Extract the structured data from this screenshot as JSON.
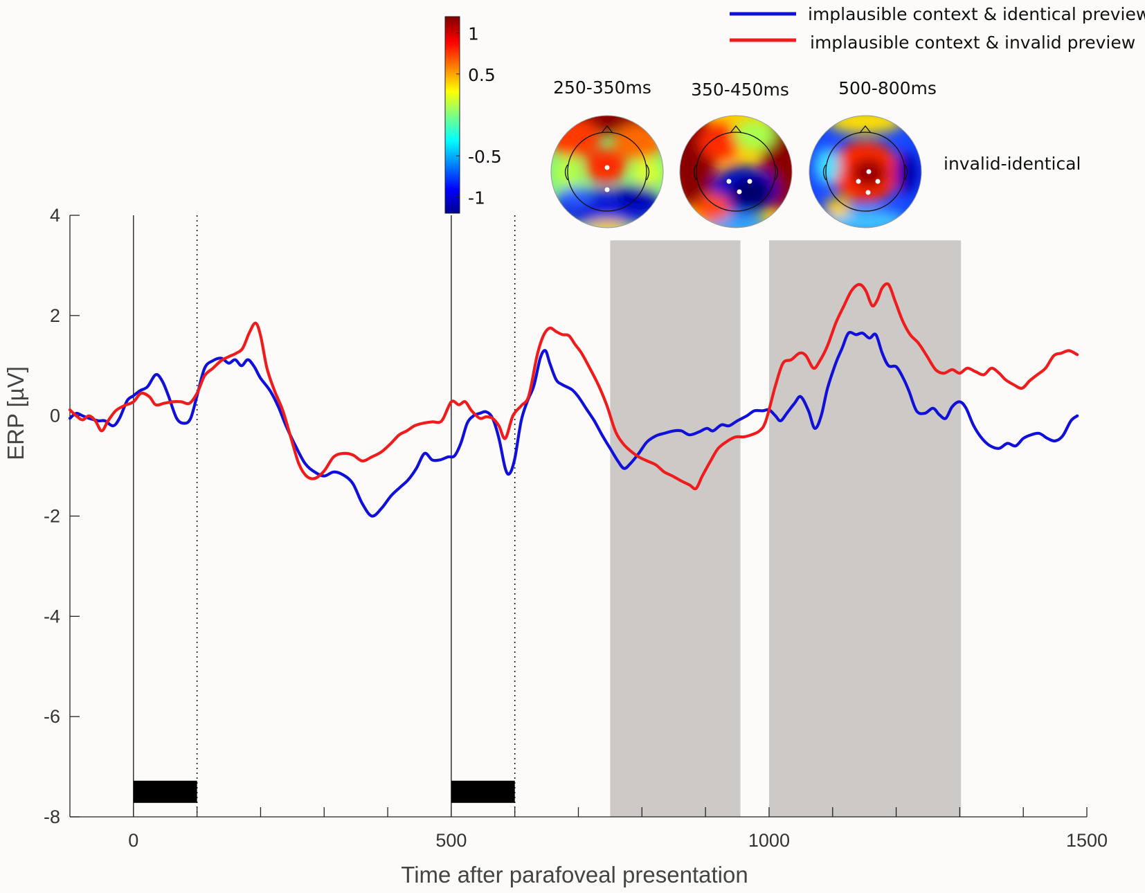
{
  "chart_data": {
    "type": "line",
    "title": "",
    "xlabel": "Time after parafoveal presentation",
    "ylabel": "ERP [µV]",
    "xlim": [
      -100,
      1500
    ],
    "ylim": [
      -8,
      4
    ],
    "x_ticks": [
      0,
      500,
      1000,
      1500
    ],
    "y_ticks": [
      -8,
      -6,
      -4,
      -2,
      0,
      2,
      4
    ],
    "x_tick_labels": [
      "0",
      "500",
      "1000",
      "1500"
    ],
    "y_tick_labels": [
      "-8",
      "-6",
      "-4",
      "-2",
      "0",
      "2",
      "4"
    ],
    "x_minor_ticks": [
      100,
      200,
      300,
      400,
      600,
      700,
      800,
      900,
      1100,
      1200,
      1300,
      1400
    ],
    "grid": false,
    "legend_position": "top-right",
    "shaded_regions": [
      [
        750,
        955
      ],
      [
        1000,
        1302
      ]
    ],
    "vertical_lines_solid": [
      0,
      500
    ],
    "vertical_lines_dotted": [
      100,
      600
    ],
    "stimulus_bars": [
      {
        "from": 0,
        "to": 100,
        "y": -7.5
      },
      {
        "from": 500,
        "to": 600,
        "y": -7.5
      }
    ],
    "series": [
      {
        "name": "implausible context & identical preview",
        "color": "#1010d8",
        "points": [
          [
            -100,
            -0.05
          ],
          [
            -90,
            0.05
          ],
          [
            -80,
            0.0
          ],
          [
            -70,
            -0.05
          ],
          [
            -55,
            -0.1
          ],
          [
            -45,
            -0.1
          ],
          [
            -32,
            -0.2
          ],
          [
            -22,
            -0.05
          ],
          [
            -10,
            0.3
          ],
          [
            0,
            0.4
          ],
          [
            10,
            0.5
          ],
          [
            22,
            0.58
          ],
          [
            35,
            0.82
          ],
          [
            45,
            0.7
          ],
          [
            55,
            0.4
          ],
          [
            68,
            -0.05
          ],
          [
            80,
            -0.15
          ],
          [
            90,
            -0.05
          ],
          [
            100,
            0.4
          ],
          [
            112,
            0.95
          ],
          [
            125,
            1.1
          ],
          [
            138,
            1.15
          ],
          [
            150,
            1.05
          ],
          [
            160,
            1.12
          ],
          [
            170,
            1.0
          ],
          [
            180,
            1.12
          ],
          [
            190,
            0.98
          ],
          [
            200,
            0.75
          ],
          [
            215,
            0.5
          ],
          [
            228,
            0.18
          ],
          [
            240,
            -0.2
          ],
          [
            255,
            -0.6
          ],
          [
            270,
            -0.95
          ],
          [
            285,
            -1.12
          ],
          [
            300,
            -1.2
          ],
          [
            315,
            -1.12
          ],
          [
            330,
            -1.18
          ],
          [
            345,
            -1.35
          ],
          [
            360,
            -1.75
          ],
          [
            375,
            -2.0
          ],
          [
            390,
            -1.85
          ],
          [
            405,
            -1.6
          ],
          [
            420,
            -1.42
          ],
          [
            432,
            -1.28
          ],
          [
            445,
            -1.05
          ],
          [
            458,
            -0.75
          ],
          [
            470,
            -0.88
          ],
          [
            482,
            -0.88
          ],
          [
            495,
            -0.82
          ],
          [
            505,
            -0.8
          ],
          [
            515,
            -0.55
          ],
          [
            525,
            -0.15
          ],
          [
            535,
            0.0
          ],
          [
            545,
            0.05
          ],
          [
            555,
            0.08
          ],
          [
            565,
            -0.05
          ],
          [
            575,
            -0.45
          ],
          [
            585,
            -1.05
          ],
          [
            592,
            -1.15
          ],
          [
            600,
            -0.85
          ],
          [
            610,
            -0.1
          ],
          [
            620,
            0.3
          ],
          [
            630,
            0.6
          ],
          [
            640,
            1.15
          ],
          [
            648,
            1.3
          ],
          [
            655,
            1.05
          ],
          [
            665,
            0.72
          ],
          [
            675,
            0.62
          ],
          [
            690,
            0.52
          ],
          [
            700,
            0.38
          ],
          [
            712,
            0.15
          ],
          [
            725,
            -0.1
          ],
          [
            738,
            -0.4
          ],
          [
            750,
            -0.65
          ],
          [
            762,
            -0.9
          ],
          [
            772,
            -1.05
          ],
          [
            782,
            -0.95
          ],
          [
            795,
            -0.75
          ],
          [
            808,
            -0.52
          ],
          [
            822,
            -0.4
          ],
          [
            835,
            -0.35
          ],
          [
            850,
            -0.3
          ],
          [
            862,
            -0.3
          ],
          [
            875,
            -0.38
          ],
          [
            890,
            -0.32
          ],
          [
            902,
            -0.25
          ],
          [
            912,
            -0.3
          ],
          [
            925,
            -0.18
          ],
          [
            937,
            -0.2
          ],
          [
            950,
            -0.1
          ],
          [
            965,
            0.0
          ],
          [
            977,
            0.1
          ],
          [
            990,
            0.1
          ],
          [
            1000,
            0.12
          ],
          [
            1010,
            0.0
          ],
          [
            1018,
            -0.1
          ],
          [
            1028,
            0.05
          ],
          [
            1040,
            0.25
          ],
          [
            1050,
            0.38
          ],
          [
            1062,
            0.1
          ],
          [
            1072,
            -0.25
          ],
          [
            1082,
            0.0
          ],
          [
            1092,
            0.55
          ],
          [
            1105,
            1.05
          ],
          [
            1115,
            1.35
          ],
          [
            1125,
            1.65
          ],
          [
            1137,
            1.62
          ],
          [
            1147,
            1.65
          ],
          [
            1158,
            1.55
          ],
          [
            1168,
            1.62
          ],
          [
            1178,
            1.25
          ],
          [
            1188,
            1.0
          ],
          [
            1200,
            0.98
          ],
          [
            1210,
            0.78
          ],
          [
            1220,
            0.5
          ],
          [
            1232,
            0.1
          ],
          [
            1245,
            0.05
          ],
          [
            1258,
            0.15
          ],
          [
            1268,
            0.02
          ],
          [
            1278,
            -0.05
          ],
          [
            1288,
            0.18
          ],
          [
            1300,
            0.28
          ],
          [
            1310,
            0.15
          ],
          [
            1322,
            -0.2
          ],
          [
            1335,
            -0.45
          ],
          [
            1348,
            -0.6
          ],
          [
            1362,
            -0.65
          ],
          [
            1375,
            -0.55
          ],
          [
            1388,
            -0.6
          ],
          [
            1400,
            -0.45
          ],
          [
            1412,
            -0.38
          ],
          [
            1425,
            -0.35
          ],
          [
            1438,
            -0.45
          ],
          [
            1450,
            -0.5
          ],
          [
            1462,
            -0.4
          ],
          [
            1475,
            -0.1
          ],
          [
            1485,
            0.0
          ]
        ]
      },
      {
        "name": "implausible context & invalid preview",
        "color": "#ee1c1c",
        "points": [
          [
            -100,
            0.12
          ],
          [
            -90,
            0.0
          ],
          [
            -80,
            -0.08
          ],
          [
            -70,
            0.0
          ],
          [
            -60,
            -0.1
          ],
          [
            -50,
            -0.3
          ],
          [
            -40,
            -0.1
          ],
          [
            -28,
            0.1
          ],
          [
            -15,
            0.2
          ],
          [
            0,
            0.28
          ],
          [
            12,
            0.45
          ],
          [
            25,
            0.38
          ],
          [
            35,
            0.22
          ],
          [
            48,
            0.25
          ],
          [
            62,
            0.28
          ],
          [
            75,
            0.28
          ],
          [
            88,
            0.25
          ],
          [
            100,
            0.45
          ],
          [
            112,
            0.8
          ],
          [
            125,
            0.95
          ],
          [
            138,
            1.1
          ],
          [
            150,
            1.18
          ],
          [
            162,
            1.25
          ],
          [
            172,
            1.35
          ],
          [
            182,
            1.65
          ],
          [
            192,
            1.85
          ],
          [
            200,
            1.6
          ],
          [
            210,
            0.95
          ],
          [
            222,
            0.5
          ],
          [
            235,
            0.1
          ],
          [
            248,
            -0.45
          ],
          [
            260,
            -0.95
          ],
          [
            272,
            -1.2
          ],
          [
            285,
            -1.25
          ],
          [
            300,
            -1.1
          ],
          [
            315,
            -0.82
          ],
          [
            330,
            -0.75
          ],
          [
            345,
            -0.78
          ],
          [
            360,
            -0.9
          ],
          [
            375,
            -0.82
          ],
          [
            390,
            -0.72
          ],
          [
            405,
            -0.55
          ],
          [
            418,
            -0.38
          ],
          [
            430,
            -0.3
          ],
          [
            442,
            -0.2
          ],
          [
            455,
            -0.15
          ],
          [
            470,
            -0.12
          ],
          [
            485,
            -0.1
          ],
          [
            500,
            0.28
          ],
          [
            512,
            0.22
          ],
          [
            522,
            0.28
          ],
          [
            532,
            0.1
          ],
          [
            545,
            -0.05
          ],
          [
            555,
            -0.02
          ],
          [
            565,
            -0.05
          ],
          [
            575,
            -0.2
          ],
          [
            585,
            -0.45
          ],
          [
            597,
            0.0
          ],
          [
            610,
            0.2
          ],
          [
            622,
            0.4
          ],
          [
            635,
            1.2
          ],
          [
            645,
            1.6
          ],
          [
            655,
            1.75
          ],
          [
            665,
            1.68
          ],
          [
            675,
            1.62
          ],
          [
            685,
            1.6
          ],
          [
            695,
            1.42
          ],
          [
            705,
            1.25
          ],
          [
            718,
            0.95
          ],
          [
            732,
            0.6
          ],
          [
            745,
            0.2
          ],
          [
            758,
            -0.3
          ],
          [
            770,
            -0.55
          ],
          [
            782,
            -0.7
          ],
          [
            795,
            -0.82
          ],
          [
            808,
            -0.9
          ],
          [
            822,
            -0.98
          ],
          [
            835,
            -1.12
          ],
          [
            848,
            -1.2
          ],
          [
            862,
            -1.3
          ],
          [
            875,
            -1.38
          ],
          [
            885,
            -1.45
          ],
          [
            895,
            -1.2
          ],
          [
            908,
            -0.9
          ],
          [
            920,
            -0.65
          ],
          [
            935,
            -0.5
          ],
          [
            948,
            -0.42
          ],
          [
            960,
            -0.42
          ],
          [
            972,
            -0.38
          ],
          [
            985,
            -0.3
          ],
          [
            995,
            -0.1
          ],
          [
            1010,
            0.6
          ],
          [
            1022,
            1.05
          ],
          [
            1035,
            1.12
          ],
          [
            1048,
            1.25
          ],
          [
            1058,
            1.2
          ],
          [
            1070,
            0.95
          ],
          [
            1080,
            1.1
          ],
          [
            1092,
            1.4
          ],
          [
            1105,
            1.85
          ],
          [
            1118,
            2.2
          ],
          [
            1130,
            2.5
          ],
          [
            1142,
            2.62
          ],
          [
            1152,
            2.5
          ],
          [
            1162,
            2.2
          ],
          [
            1170,
            2.3
          ],
          [
            1178,
            2.55
          ],
          [
            1188,
            2.62
          ],
          [
            1198,
            2.3
          ],
          [
            1210,
            1.9
          ],
          [
            1222,
            1.62
          ],
          [
            1235,
            1.45
          ],
          [
            1248,
            1.2
          ],
          [
            1262,
            0.92
          ],
          [
            1275,
            0.85
          ],
          [
            1288,
            0.92
          ],
          [
            1300,
            0.85
          ],
          [
            1312,
            0.95
          ],
          [
            1325,
            0.88
          ],
          [
            1338,
            0.82
          ],
          [
            1350,
            0.95
          ],
          [
            1362,
            0.85
          ],
          [
            1372,
            0.72
          ],
          [
            1385,
            0.62
          ],
          [
            1398,
            0.55
          ],
          [
            1410,
            0.7
          ],
          [
            1422,
            0.82
          ],
          [
            1435,
            0.95
          ],
          [
            1448,
            1.2
          ],
          [
            1460,
            1.25
          ],
          [
            1472,
            1.3
          ],
          [
            1485,
            1.22
          ]
        ]
      }
    ],
    "colorbar": {
      "colormap": "jet",
      "range": [
        -1.2,
        1.2
      ],
      "ticks": [
        1,
        0.5,
        -0.5,
        -1
      ],
      "tick_labels": [
        "1",
        "0.5",
        "-0.5",
        "-1"
      ]
    },
    "topomaps": [
      {
        "label": "250-350ms"
      },
      {
        "label": "350-450ms"
      },
      {
        "label": "500-800ms"
      }
    ],
    "topomap_caption": "invalid-identical"
  }
}
